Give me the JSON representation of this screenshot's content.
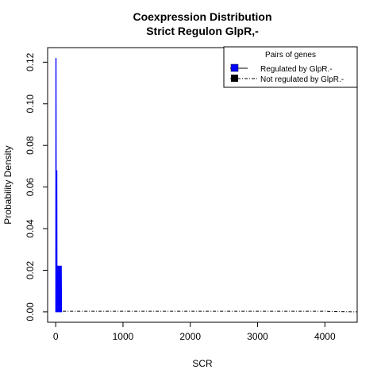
{
  "chart_data": {
    "type": "area",
    "title": "Coexpression Distribution",
    "subtitle": "Strict Regulon GlpR,-",
    "xlabel": "SCR",
    "ylabel": "Probability Density",
    "xlim": [
      -120,
      4480
    ],
    "ylim": [
      -0.005,
      0.127
    ],
    "x_ticks": [
      0,
      1000,
      2000,
      3000,
      4000
    ],
    "y_ticks": [
      0.0,
      0.02,
      0.04,
      0.06,
      0.08,
      0.1,
      0.12
    ],
    "x_tick_labels": [
      "0",
      "1000",
      "2000",
      "3000",
      "4000"
    ],
    "y_tick_labels": [
      "0.00",
      "0.02",
      "0.04",
      "0.06",
      "0.08",
      "0.10",
      "0.12"
    ],
    "legend": {
      "title": "Pairs of genes",
      "placement": "top-right",
      "entries": [
        "Regulated by  GlpR.-",
        "Not regulated by  GlpR.-"
      ]
    },
    "series": [
      {
        "name": "Regulated by  GlpR.-",
        "color": "#0000ff",
        "style": "filled-spikes",
        "x": [
          0,
          2,
          4,
          6,
          8,
          10,
          12,
          14,
          16,
          18,
          20,
          22,
          24,
          26,
          28,
          30,
          32,
          36,
          40,
          44,
          48,
          52,
          56,
          60,
          64,
          68,
          72,
          76,
          80,
          84,
          88
        ],
        "y": [
          0.002,
          0.122,
          0.104,
          0.122,
          0.068,
          0.047,
          0.026,
          0.022,
          0.052,
          0.068,
          0.022,
          0.022,
          0.022,
          0.022,
          0.022,
          0.022,
          0.022,
          0.022,
          0.022,
          0.022,
          0.022,
          0.022,
          0.022,
          0.022,
          0.022,
          0.022,
          0.022,
          0.022,
          0.022,
          0.022,
          0.0
        ]
      },
      {
        "name": "Not regulated by  GlpR.-",
        "color": "#000000",
        "style": "dash-dot",
        "x": [
          0,
          500,
          1000,
          1500,
          2000,
          2500,
          3000,
          3500,
          4000,
          4200,
          4480
        ],
        "y": [
          0.0003,
          0.0003,
          0.0003,
          0.0003,
          0.0003,
          0.0003,
          0.0003,
          0.0003,
          0.0003,
          0.0001,
          0.0
        ]
      }
    ]
  }
}
